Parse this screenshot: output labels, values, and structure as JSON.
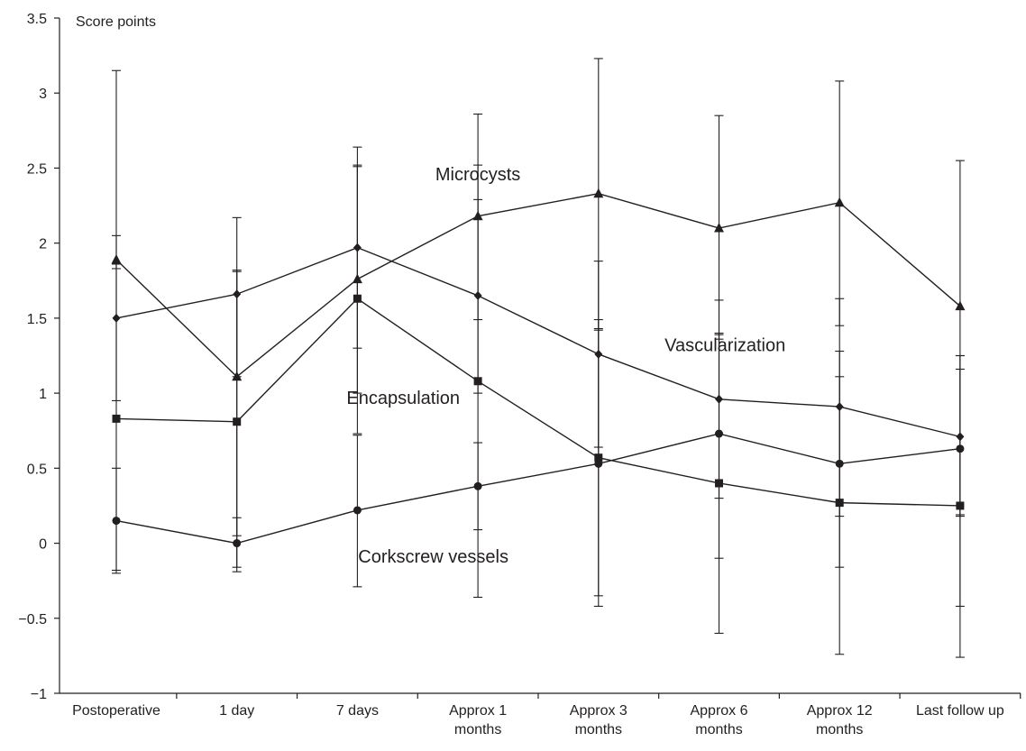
{
  "chart_data": {
    "type": "line",
    "ylabel": "Score points",
    "xlabel": "",
    "ylim": [
      -1,
      3.5
    ],
    "yticks": [
      -1,
      -0.5,
      0,
      0.5,
      1,
      1.5,
      2,
      2.5,
      3,
      3.5
    ],
    "ytick_labels": [
      "−1",
      "−0.5",
      "0",
      "0.5",
      "1",
      "1.5",
      "2",
      "2.5",
      "3",
      "3.5"
    ],
    "grid": false,
    "legend": "none",
    "categories": [
      [
        "Postoperative"
      ],
      [
        "1 day"
      ],
      [
        "7 days"
      ],
      [
        "Approx 1",
        "months"
      ],
      [
        "Approx 3",
        "months"
      ],
      [
        "Approx 6",
        "months"
      ],
      [
        "Approx 12",
        "months"
      ],
      [
        "Last follow up"
      ]
    ],
    "series": [
      {
        "name": "Microcysts",
        "marker": "triangle",
        "values": [
          1.89,
          1.11,
          1.76,
          2.18,
          2.33,
          2.1,
          2.27,
          1.58
        ],
        "err_low": [
          1.83,
          0.05,
          1.0,
          1.49,
          1.43,
          1.36,
          1.45,
          0.19
        ],
        "err_high": [
          3.15,
          2.17,
          2.51,
          2.86,
          3.23,
          2.85,
          3.08,
          2.55
        ]
      },
      {
        "name": "Vascularization",
        "marker": "diamond",
        "values": [
          1.5,
          1.66,
          1.97,
          1.65,
          1.26,
          0.96,
          0.91,
          0.71
        ],
        "err_low": [
          0.95,
          1.11,
          1.3,
          1.0,
          0.64,
          0.3,
          0.18,
          0.18
        ],
        "err_high": [
          2.05,
          1.81,
          2.64,
          2.29,
          1.88,
          1.62,
          1.63,
          1.25
        ]
      },
      {
        "name": "Encapsulation",
        "marker": "square",
        "values": [
          0.83,
          0.81,
          1.63,
          1.08,
          0.57,
          0.4,
          0.27,
          0.25
        ],
        "err_low": [
          -0.2,
          -0.19,
          0.73,
          -0.36,
          -0.35,
          -0.6,
          -0.74,
          -0.76
        ],
        "err_high": [
          1.86,
          1.82,
          2.52,
          2.52,
          1.49,
          1.4,
          1.28,
          1.25
        ]
      },
      {
        "name": "Corkscrew vessels",
        "marker": "circle",
        "values": [
          0.15,
          0.0,
          0.22,
          0.38,
          0.53,
          0.73,
          0.53,
          0.63
        ],
        "err_low": [
          -0.18,
          -0.16,
          -0.29,
          0.09,
          -0.42,
          -0.1,
          -0.16,
          -0.42
        ],
        "err_high": [
          0.5,
          0.17,
          0.72,
          0.67,
          1.42,
          1.39,
          1.11,
          1.16
        ]
      }
    ],
    "annotations": [
      {
        "text": "Microcysts",
        "x": 3.0,
        "y": 2.42
      },
      {
        "text": "Vascularization",
        "x": 5.05,
        "y": 1.28
      },
      {
        "text": "Encapsulation",
        "x": 2.38,
        "y": 0.93
      },
      {
        "text": "Corkscrew vessels",
        "x": 2.63,
        "y": -0.13
      }
    ]
  }
}
